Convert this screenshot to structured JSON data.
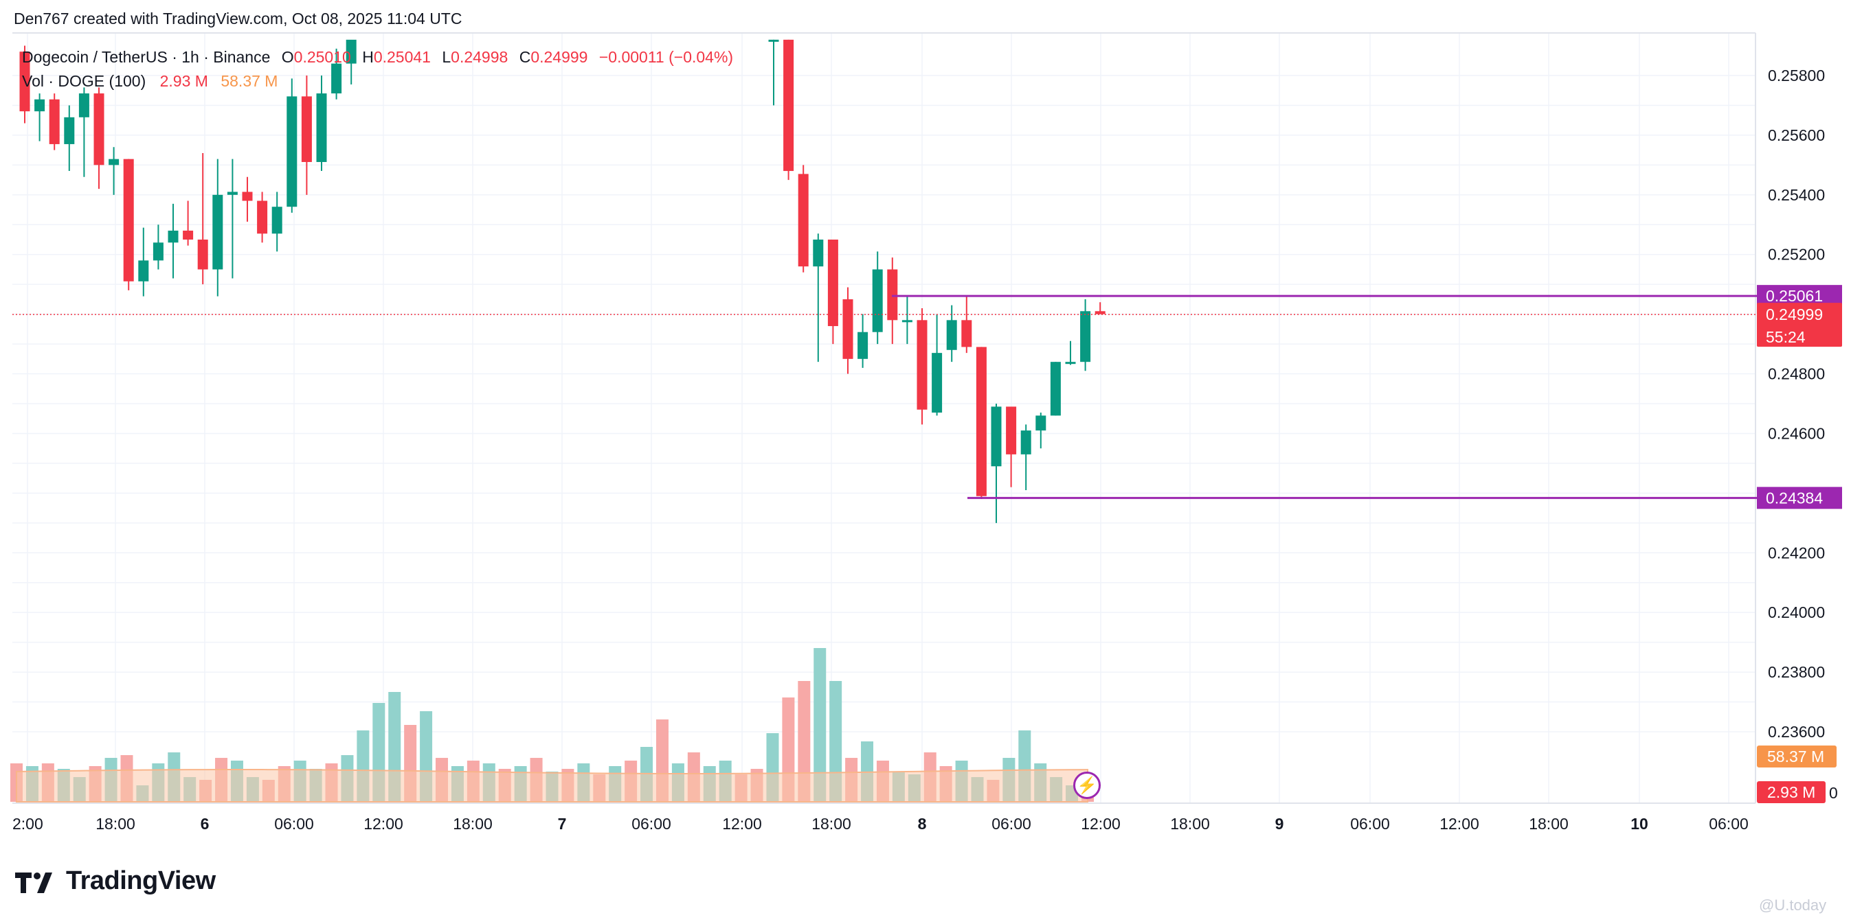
{
  "header": {
    "attribution": "Den767 created with TradingView.com, Oct 08, 2025 11:04 UTC"
  },
  "legend": {
    "symbol": "Dogecoin / TetherUS · 1h · Binance",
    "o_label": "O",
    "o_value": "0.25010",
    "h_label": "H",
    "h_value": "0.25041",
    "l_label": "L",
    "l_value": "0.24998",
    "c_label": "C",
    "c_value": "0.24999",
    "change": "−0.00011 (−0.04%)",
    "vol_label": "Vol · DOGE (100)",
    "vol_value": "2.93 M",
    "vol_ma_value": "58.37 M"
  },
  "footer": {
    "brand": "TradingView",
    "watermark": "@U.today"
  },
  "colors": {
    "up": "#089981",
    "down": "#f23645",
    "up_volume": "#92d2cc",
    "down_volume": "#f7a9a7",
    "volume_ma": "#fcc9a9",
    "level_line": "#9c27b0",
    "last_price": "#f23645",
    "vol_ma_badge": "#f7954a",
    "grid": "#f0f3fa"
  },
  "chart_data": {
    "type": "candlestick",
    "title": "Dogecoin / TetherUS · 1h · Binance",
    "y_ticks": [
      "0.25800",
      "0.25600",
      "0.25400",
      "0.25200",
      "0.24800",
      "0.24600",
      "0.24200",
      "0.24000",
      "0.23800",
      "0.23600"
    ],
    "ylim": [
      0.2336,
      0.2592
    ],
    "x_ticks": [
      "2:00",
      "18:00",
      "6",
      "06:00",
      "12:00",
      "18:00",
      "7",
      "06:00",
      "12:00",
      "18:00",
      "8",
      "06:00",
      "12:00",
      "18:00",
      "9",
      "06:00",
      "12:00",
      "18:00",
      "10",
      "06:00"
    ],
    "levels": [
      {
        "name": "resistance",
        "value": 0.25061,
        "label": "0.25061"
      },
      {
        "name": "support",
        "value": 0.24384,
        "label": "0.24384"
      }
    ],
    "last_price": {
      "value": 0.24999,
      "label": "0.24999",
      "countdown": "55:24"
    },
    "badges": {
      "vol_ma": "58.37 M",
      "vol": "2.93 M",
      "hidden_tick": "0"
    },
    "candles": [
      {
        "o": 0.2588,
        "h": 0.259,
        "l": 0.2564,
        "c": 0.2568
      },
      {
        "o": 0.2568,
        "h": 0.2574,
        "l": 0.2558,
        "c": 0.2572
      },
      {
        "o": 0.2572,
        "h": 0.2574,
        "l": 0.2555,
        "c": 0.2557
      },
      {
        "o": 0.2557,
        "h": 0.257,
        "l": 0.2548,
        "c": 0.2566
      },
      {
        "o": 0.2566,
        "h": 0.2576,
        "l": 0.2546,
        "c": 0.2574
      },
      {
        "o": 0.2574,
        "h": 0.2576,
        "l": 0.2542,
        "c": 0.255
      },
      {
        "o": 0.255,
        "h": 0.2556,
        "l": 0.254,
        "c": 0.2552
      },
      {
        "o": 0.2552,
        "h": 0.2552,
        "l": 0.2508,
        "c": 0.2511
      },
      {
        "o": 0.2511,
        "h": 0.2529,
        "l": 0.2506,
        "c": 0.2518
      },
      {
        "o": 0.2518,
        "h": 0.253,
        "l": 0.2515,
        "c": 0.2524
      },
      {
        "o": 0.2524,
        "h": 0.2537,
        "l": 0.2512,
        "c": 0.2528
      },
      {
        "o": 0.2528,
        "h": 0.2538,
        "l": 0.2523,
        "c": 0.2525
      },
      {
        "o": 0.2525,
        "h": 0.2554,
        "l": 0.251,
        "c": 0.2515
      },
      {
        "o": 0.2515,
        "h": 0.2552,
        "l": 0.2506,
        "c": 0.254
      },
      {
        "o": 0.254,
        "h": 0.2552,
        "l": 0.2512,
        "c": 0.2541
      },
      {
        "o": 0.2541,
        "h": 0.2546,
        "l": 0.2531,
        "c": 0.2538
      },
      {
        "o": 0.2538,
        "h": 0.2541,
        "l": 0.2524,
        "c": 0.2527
      },
      {
        "o": 0.2527,
        "h": 0.2541,
        "l": 0.2521,
        "c": 0.2536
      },
      {
        "o": 0.2536,
        "h": 0.2579,
        "l": 0.2534,
        "c": 0.2573
      },
      {
        "o": 0.2573,
        "h": 0.258,
        "l": 0.254,
        "c": 0.2551
      },
      {
        "o": 0.2551,
        "h": 0.258,
        "l": 0.2548,
        "c": 0.2574
      },
      {
        "o": 0.2574,
        "h": 0.2589,
        "l": 0.2572,
        "c": 0.2584
      },
      {
        "o": 0.2584,
        "h": 0.259,
        "l": 0.2577,
        "c": 0.2592
      }
    ],
    "candles_b": [
      {
        "o": 0.2592,
        "h": 0.2592,
        "l": 0.257,
        "c": 0.2592
      },
      {
        "o": 0.2592,
        "h": 0.2592,
        "l": 0.2545,
        "c": 0.2548
      },
      {
        "o": 0.2547,
        "h": 0.255,
        "l": 0.2514,
        "c": 0.2516
      },
      {
        "o": 0.2516,
        "h": 0.2527,
        "l": 0.2484,
        "c": 0.2525
      },
      {
        "o": 0.2525,
        "h": 0.2519,
        "l": 0.249,
        "c": 0.2496
      },
      {
        "o": 0.2505,
        "h": 0.2509,
        "l": 0.248,
        "c": 0.2485
      },
      {
        "o": 0.2485,
        "h": 0.25,
        "l": 0.2482,
        "c": 0.2494
      },
      {
        "o": 0.2494,
        "h": 0.2521,
        "l": 0.249,
        "c": 0.2515
      },
      {
        "o": 0.2515,
        "h": 0.2519,
        "l": 0.249,
        "c": 0.2498
      },
      {
        "o": 0.2498,
        "h": 0.2506,
        "l": 0.249,
        "c": 0.2498
      },
      {
        "o": 0.2498,
        "h": 0.2502,
        "l": 0.2463,
        "c": 0.2468
      },
      {
        "o": 0.2467,
        "h": 0.25,
        "l": 0.2466,
        "c": 0.2487
      },
      {
        "o": 0.2488,
        "h": 0.2503,
        "l": 0.2484,
        "c": 0.2498
      },
      {
        "o": 0.2498,
        "h": 0.2506,
        "l": 0.2487,
        "c": 0.2489
      },
      {
        "o": 0.2489,
        "h": 0.2489,
        "l": 0.2438,
        "c": 0.2439
      },
      {
        "o": 0.2449,
        "h": 0.247,
        "l": 0.243,
        "c": 0.2469
      },
      {
        "o": 0.2469,
        "h": 0.2468,
        "l": 0.2442,
        "c": 0.2453
      },
      {
        "o": 0.2453,
        "h": 0.2463,
        "l": 0.2441,
        "c": 0.2461
      },
      {
        "o": 0.2461,
        "h": 0.2467,
        "l": 0.2455,
        "c": 0.2466
      },
      {
        "o": 0.2466,
        "h": 0.2484,
        "l": 0.2466,
        "c": 0.2484
      },
      {
        "o": 0.2484,
        "h": 0.2491,
        "l": 0.2483,
        "c": 0.2484
      },
      {
        "o": 0.2484,
        "h": 0.2505,
        "l": 0.2481,
        "c": 0.2501
      },
      {
        "o": 0.2501,
        "h": 0.2504,
        "l": 0.25,
        "c": 0.25
      }
    ],
    "volumes": [
      14,
      13,
      14,
      12,
      9,
      13,
      16,
      17,
      6,
      14,
      18,
      9,
      8,
      16,
      15,
      9,
      8,
      13,
      15,
      12,
      14,
      17,
      26,
      36,
      40,
      28,
      33,
      16,
      13,
      15,
      14,
      12,
      13,
      16,
      11,
      12,
      14,
      10,
      13,
      15,
      20,
      30,
      14,
      18,
      13,
      15,
      10,
      12,
      25,
      38,
      44,
      56,
      44,
      16,
      22,
      15,
      11,
      10,
      18,
      13,
      15,
      9,
      8,
      16,
      26,
      14,
      9,
      6,
      8
    ],
    "volumes_meta": "relative heights per candle, max 56"
  }
}
